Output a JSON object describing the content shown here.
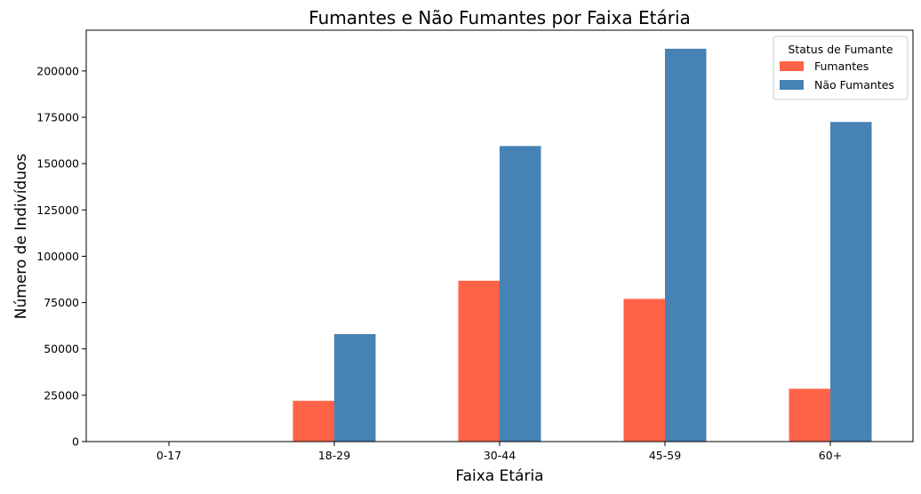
{
  "chart_data": {
    "type": "bar",
    "title": "Fumantes e Não Fumantes por Faixa Etária",
    "xlabel": "Faixa Etária",
    "ylabel": "Número de Indivíduos",
    "categories": [
      "0-17",
      "18-29",
      "30-44",
      "45-59",
      "60+"
    ],
    "series": [
      {
        "name": "Fumantes",
        "color": "#ff6347",
        "values": [
          0,
          22000,
          86800,
          77000,
          28500
        ]
      },
      {
        "name": "Não Fumantes",
        "color": "#4682b4",
        "values": [
          0,
          58000,
          159500,
          212000,
          172500
        ]
      }
    ],
    "ylim": [
      0,
      222000
    ],
    "yticks": [
      0,
      25000,
      50000,
      75000,
      100000,
      125000,
      150000,
      175000,
      200000
    ],
    "grid": false,
    "legend": {
      "title": "Status de Fumante",
      "position": "top-right"
    }
  }
}
